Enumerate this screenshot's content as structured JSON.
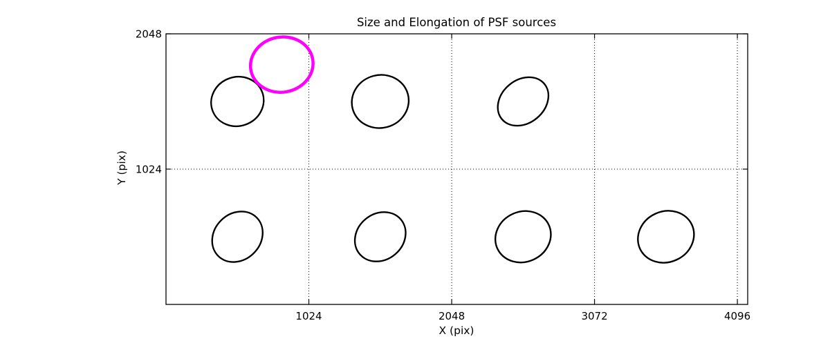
{
  "title": "Size and Elongation of PSF sources",
  "colors": {
    "foreground": "#000000",
    "background": "#ffffff",
    "flagged": "#ff00ff"
  },
  "chart_data": {
    "type": "scatter",
    "title": "Size and Elongation of PSF sources",
    "xlabel": "X (pix)",
    "ylabel": "Y (pix)",
    "xlim": [
      0,
      4170
    ],
    "ylim": [
      0,
      2048
    ],
    "xticks": [
      1024,
      2048,
      3072,
      4096
    ],
    "yticks": [
      1024,
      2048
    ],
    "xtick_labels": [
      "1024",
      "2048",
      "3072",
      "4096"
    ],
    "ytick_labels": [
      "1024",
      "2048"
    ],
    "grid": "dotted",
    "legend": "none",
    "marker_style": "ellipse-outline",
    "series": [
      {
        "name": "psf-sources",
        "color": "#000000",
        "stroke_width": 2.4,
        "points": [
          {
            "x": 512,
            "y": 1536,
            "a": 190,
            "b": 176,
            "rot": -20
          },
          {
            "x": 1536,
            "y": 1536,
            "a": 205,
            "b": 190,
            "rot": -15
          },
          {
            "x": 2560,
            "y": 1536,
            "a": 198,
            "b": 155,
            "rot": -40
          },
          {
            "x": 512,
            "y": 512,
            "a": 195,
            "b": 166,
            "rot": -45
          },
          {
            "x": 1536,
            "y": 512,
            "a": 193,
            "b": 165,
            "rot": -40
          },
          {
            "x": 2560,
            "y": 512,
            "a": 203,
            "b": 180,
            "rot": -25
          },
          {
            "x": 3584,
            "y": 512,
            "a": 205,
            "b": 182,
            "rot": -25
          }
        ]
      },
      {
        "name": "flagged-psf-source",
        "color": "#ff00ff",
        "stroke_width": 4.5,
        "points": [
          {
            "x": 830,
            "y": 1815,
            "a": 225,
            "b": 198,
            "rot": -10
          }
        ]
      }
    ]
  }
}
